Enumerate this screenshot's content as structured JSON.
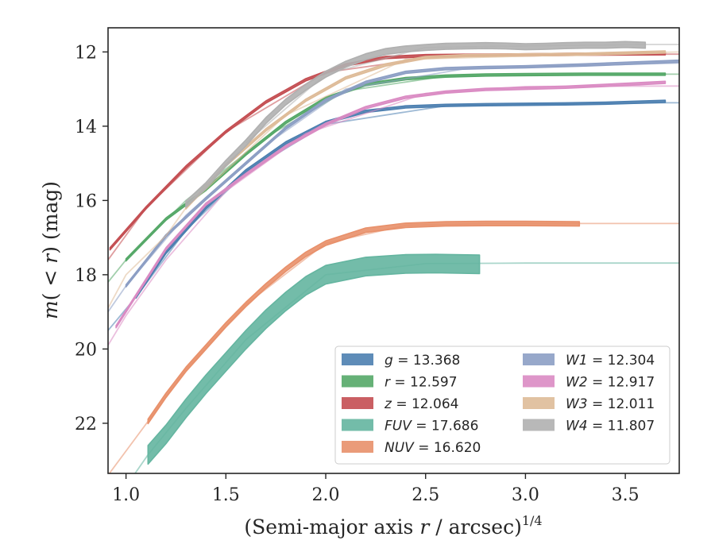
{
  "chart_data": {
    "type": "line",
    "xlabel": "(Semi-major axis r / arcsec)^1/4",
    "ylabel": "m(<r) (mag)",
    "xlim": [
      0.91,
      3.77
    ],
    "ylim": [
      23.35,
      11.35
    ],
    "y_inverted": true,
    "xticks": [
      1.0,
      1.5,
      2.0,
      2.5,
      3.0,
      3.5
    ],
    "xtick_labels": [
      "1.0",
      "1.5",
      "2.0",
      "2.5",
      "3.0",
      "3.5"
    ],
    "yticks": [
      12,
      14,
      16,
      18,
      20,
      22
    ],
    "ytick_labels": [
      "12",
      "14",
      "16",
      "18",
      "20",
      "22"
    ],
    "grid": false,
    "legend_position": "lower-right",
    "series": [
      {
        "name": "g",
        "label": "g = 13.368",
        "color": "#4C7FB0",
        "band_width": 0.06,
        "x": [
          1.05,
          1.2,
          1.4,
          1.6,
          1.8,
          2.0,
          2.2,
          2.4,
          2.6,
          2.8,
          3.0,
          3.2,
          3.4,
          3.7
        ],
        "y": [
          18.6,
          17.4,
          16.2,
          15.2,
          14.45,
          13.9,
          13.6,
          13.48,
          13.44,
          13.42,
          13.41,
          13.4,
          13.38,
          13.33
        ],
        "ext_x": [
          0.91,
          1.05,
          1.3,
          1.6,
          2.0,
          2.6,
          3.7,
          3.77
        ],
        "ext_y": [
          19.5,
          18.6,
          16.8,
          15.25,
          13.95,
          13.45,
          13.37,
          13.37
        ]
      },
      {
        "name": "r",
        "label": "r = 12.597",
        "color": "#55A868",
        "band_width": 0.06,
        "x": [
          1.0,
          1.2,
          1.4,
          1.6,
          1.8,
          2.0,
          2.2,
          2.4,
          2.6,
          2.8,
          3.0,
          3.3,
          3.7
        ],
        "y": [
          17.6,
          16.5,
          15.7,
          14.75,
          13.9,
          13.25,
          12.88,
          12.72,
          12.65,
          12.62,
          12.61,
          12.6,
          12.6
        ],
        "ext_x": [
          0.91,
          1.0,
          1.3,
          1.7,
          2.1,
          2.6,
          3.7,
          3.77
        ],
        "ext_y": [
          18.2,
          17.6,
          16.0,
          14.3,
          13.05,
          12.65,
          12.6,
          12.6
        ]
      },
      {
        "name": "z",
        "label": "z = 12.064",
        "color": "#C44E52",
        "band_width": 0.06,
        "x": [
          0.92,
          1.1,
          1.3,
          1.5,
          1.7,
          1.9,
          2.1,
          2.3,
          2.5,
          2.7,
          3.0,
          3.3,
          3.7
        ],
        "y": [
          17.3,
          16.2,
          15.1,
          14.15,
          13.35,
          12.75,
          12.35,
          12.15,
          12.1,
          12.09,
          12.08,
          12.06,
          12.05
        ],
        "ext_x": [
          0.91,
          1.1,
          1.5,
          2.0,
          2.6,
          3.7,
          3.77
        ],
        "ext_y": [
          17.6,
          16.2,
          14.15,
          12.55,
          12.1,
          12.06,
          12.06
        ]
      },
      {
        "name": "FUV",
        "label": "FUV = 17.686",
        "color": "#64B5A0",
        "band_width": 0.5,
        "x": [
          1.11,
          1.2,
          1.3,
          1.4,
          1.5,
          1.6,
          1.7,
          1.8,
          1.9,
          2.0,
          2.2,
          2.4,
          2.55,
          2.77
        ],
        "y": [
          22.85,
          22.3,
          21.6,
          20.95,
          20.35,
          19.75,
          19.2,
          18.72,
          18.3,
          18.0,
          17.78,
          17.71,
          17.7,
          17.72
        ],
        "ext_x": [
          1.0,
          1.11,
          1.3,
          1.6,
          2.0,
          2.5,
          3.0,
          3.77
        ],
        "ext_y": [
          23.7,
          22.85,
          21.6,
          19.75,
          18.0,
          17.7,
          17.686,
          17.686
        ]
      },
      {
        "name": "NUV",
        "label": "NUV = 16.620",
        "color": "#E8906A",
        "band_width": 0.12,
        "x": [
          1.11,
          1.2,
          1.3,
          1.4,
          1.5,
          1.6,
          1.7,
          1.8,
          1.9,
          2.0,
          2.2,
          2.4,
          2.6,
          2.8,
          3.0,
          3.27
        ],
        "y": [
          21.95,
          21.25,
          20.55,
          19.95,
          19.35,
          18.8,
          18.3,
          17.85,
          17.45,
          17.15,
          16.8,
          16.67,
          16.63,
          16.62,
          16.62,
          16.63
        ],
        "ext_x": [
          0.91,
          1.11,
          1.3,
          1.6,
          2.0,
          2.4,
          2.8,
          3.77
        ],
        "ext_y": [
          23.4,
          21.95,
          20.55,
          18.8,
          17.15,
          16.67,
          16.62,
          16.62
        ]
      },
      {
        "name": "W1",
        "label": "W1 = 12.304",
        "color": "#8C9EC4",
        "band_width": 0.06,
        "x": [
          1.0,
          1.2,
          1.4,
          1.6,
          1.8,
          2.0,
          2.2,
          2.4,
          2.6,
          2.8,
          3.0,
          3.3,
          3.77
        ],
        "y": [
          18.3,
          16.95,
          15.95,
          15.0,
          14.05,
          13.3,
          12.82,
          12.55,
          12.45,
          12.42,
          12.4,
          12.35,
          12.25
        ],
        "ext_x": [
          0.91,
          1.0,
          1.3,
          1.7,
          2.1,
          2.7,
          3.77
        ],
        "ext_y": [
          19.0,
          18.3,
          16.4,
          14.5,
          13.0,
          12.45,
          12.3
        ]
      },
      {
        "name": "W2",
        "label": "W2 = 12.917",
        "color": "#DA8BC3",
        "band_width": 0.06,
        "x": [
          0.95,
          1.2,
          1.4,
          1.6,
          1.8,
          2.0,
          2.2,
          2.4,
          2.6,
          2.8,
          3.0,
          3.2,
          3.4,
          3.7
        ],
        "y": [
          19.4,
          17.3,
          16.1,
          15.3,
          14.55,
          13.95,
          13.5,
          13.22,
          13.08,
          13.01,
          12.98,
          12.95,
          12.9,
          12.82
        ],
        "ext_x": [
          0.91,
          1.0,
          1.2,
          1.5,
          1.9,
          2.5,
          3.0,
          3.77
        ],
        "ext_y": [
          19.9,
          19.1,
          17.6,
          15.75,
          14.2,
          13.12,
          12.93,
          12.917
        ]
      },
      {
        "name": "W3",
        "label": "W3 = 12.011",
        "color": "#DEBB98",
        "band_width": 0.06,
        "x": [
          1.3,
          1.5,
          1.7,
          1.9,
          2.1,
          2.3,
          2.5,
          2.7,
          3.0,
          3.3,
          3.5,
          3.7
        ],
        "y": [
          16.2,
          15.05,
          14.1,
          13.3,
          12.7,
          12.35,
          12.15,
          12.1,
          12.08,
          12.06,
          12.03,
          12.0
        ],
        "ext_x": [
          0.91,
          1.0,
          1.2,
          1.3,
          1.8,
          2.4,
          3.77
        ],
        "ext_y": [
          18.9,
          18.0,
          16.95,
          16.2,
          13.7,
          12.2,
          12.0
        ]
      },
      {
        "name": "W4",
        "label": "W4 = 11.807",
        "color": "#B0B0B0",
        "band_width": 0.16,
        "x": [
          1.3,
          1.4,
          1.5,
          1.6,
          1.7,
          1.8,
          1.9,
          2.0,
          2.1,
          2.2,
          2.3,
          2.4,
          2.5,
          2.6,
          2.7,
          2.8,
          2.9,
          3.0,
          3.1,
          3.2,
          3.3,
          3.4,
          3.5,
          3.6
        ],
        "y": [
          16.1,
          15.6,
          15.0,
          14.45,
          13.85,
          13.35,
          12.95,
          12.6,
          12.33,
          12.13,
          11.99,
          11.92,
          11.88,
          11.85,
          11.84,
          11.83,
          11.84,
          11.86,
          11.85,
          11.83,
          11.82,
          11.82,
          11.8,
          11.82
        ],
        "ext_x": [
          1.6,
          2.0,
          2.5,
          3.0,
          3.6,
          3.77
        ],
        "ext_y": [
          14.45,
          12.6,
          11.88,
          11.84,
          11.8,
          11.8
        ]
      }
    ]
  }
}
